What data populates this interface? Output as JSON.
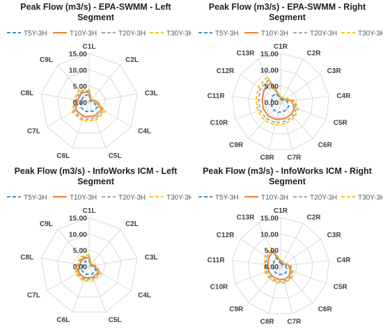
{
  "chart_data": [
    {
      "type": "radar",
      "title": "Peak Flow (m3/s) - EPA-SWMM - Left Segment",
      "title_lines": [
        "Peak Flow (m3/s) - EPA-SWMM - Left",
        "Segment"
      ],
      "categories": [
        "C1L",
        "C2L",
        "C3L",
        "C4L",
        "C5L",
        "C6L",
        "C7L",
        "C8L",
        "C9L"
      ],
      "rlim": [
        0,
        15
      ],
      "rticks": [
        "0.00",
        "5.00",
        "10.00",
        "15.00"
      ],
      "grid": true,
      "legend_position": "top",
      "series": [
        {
          "name": "T5Y-3H",
          "values": [
            2.5,
            0.5,
            1.3,
            3.0,
            3.0,
            3.0,
            3.0,
            2.5,
            2.5
          ]
        },
        {
          "name": "T10Y-3H",
          "values": [
            3.2,
            0.8,
            2.0,
            4.5,
            4.5,
            4.7,
            4.8,
            3.6,
            3.7
          ]
        },
        {
          "name": "T20Y-3H",
          "values": [
            3.5,
            1.0,
            2.3,
            5.2,
            5.3,
            5.6,
            5.5,
            4.1,
            4.3
          ]
        },
        {
          "name": "T30Y-3H",
          "values": [
            3.9,
            1.2,
            2.6,
            5.7,
            5.9,
            6.1,
            6.0,
            4.5,
            4.8
          ]
        }
      ]
    },
    {
      "type": "radar",
      "title": "Peak Flow (m3/s) - EPA-SWMM - Right Segment",
      "title_lines": [
        "Peak Flow (m3/s) - EPA-SWMM - Right",
        "Segment"
      ],
      "categories": [
        "C1R",
        "C2R",
        "C3R",
        "C4R",
        "C5R",
        "C6R",
        "C7R",
        "C8R",
        "C9R",
        "C10R",
        "C11R",
        "C12R",
        "C13R"
      ],
      "rlim": [
        0,
        15
      ],
      "rticks": [
        "0.00",
        "5.00",
        "10.00",
        "15.00"
      ],
      "grid": true,
      "legend_position": "top",
      "series": [
        {
          "name": "T5Y-3H",
          "values": [
            1.0,
            0.8,
            1.0,
            2.0,
            2.7,
            3.0,
            3.0,
            3.2,
            3.2,
            3.0,
            2.8,
            3.2,
            3.0
          ]
        },
        {
          "name": "T10Y-3H",
          "values": [
            1.3,
            1.2,
            1.6,
            3.4,
            4.5,
            5.0,
            5.2,
            5.5,
            5.7,
            5.7,
            5.7,
            6.3,
            6.7
          ]
        },
        {
          "name": "T20Y-3H",
          "values": [
            1.5,
            1.4,
            1.9,
            4.0,
            5.2,
            5.8,
            6.0,
            6.5,
            6.7,
            6.8,
            6.8,
            7.6,
            7.8
          ]
        },
        {
          "name": "T30Y-3H",
          "values": [
            1.7,
            1.6,
            2.1,
            4.4,
            5.7,
            6.4,
            6.7,
            7.2,
            7.5,
            7.5,
            7.6,
            8.3,
            8.8
          ]
        }
      ]
    },
    {
      "type": "radar",
      "title": "Peak Flow (m3/s) - InfoWorks ICM - Left Segment",
      "title_lines": [
        "Peak Flow (m3/s) - InfoWorks ICM - Left",
        "Segment"
      ],
      "categories": [
        "C1L",
        "C2L",
        "C3L",
        "C4L",
        "C5L",
        "C6L",
        "C7L",
        "C8L",
        "C9L"
      ],
      "rlim": [
        0,
        15
      ],
      "rticks": [
        "0.00",
        "5.00",
        "10.00",
        "15.00"
      ],
      "grid": true,
      "legend_position": "top",
      "series": [
        {
          "name": "T5Y-3H",
          "values": [
            2.0,
            0.5,
            1.0,
            2.5,
            2.5,
            2.6,
            2.6,
            2.0,
            2.0
          ]
        },
        {
          "name": "T10Y-3H",
          "values": [
            2.8,
            0.7,
            1.5,
            3.4,
            3.5,
            3.8,
            3.8,
            3.0,
            3.0
          ]
        },
        {
          "name": "T20Y-3H",
          "values": [
            3.2,
            0.9,
            1.8,
            3.9,
            4.0,
            4.3,
            4.3,
            3.5,
            3.5
          ]
        },
        {
          "name": "T30Y-3H",
          "values": [
            3.6,
            1.0,
            2.0,
            4.3,
            4.4,
            4.7,
            4.7,
            3.9,
            3.9
          ]
        }
      ]
    },
    {
      "type": "radar",
      "title": "Peak Flow (m3/s) - InfoWorks ICM - Right Segment",
      "title_lines": [
        "Peak Flow (m3/s) - InfoWorks ICM - Right",
        "Segment"
      ],
      "categories": [
        "C1R",
        "C2R",
        "C3R",
        "C4R",
        "C5R",
        "C6R",
        "C7R",
        "C8R",
        "C9R",
        "C10R",
        "C11R",
        "C12R",
        "C13R"
      ],
      "rlim": [
        0,
        15
      ],
      "rticks": [
        "0.00",
        "5.00",
        "10.00",
        "15.00"
      ],
      "grid": true,
      "legend_position": "top",
      "series": [
        {
          "name": "T5Y-3H",
          "values": [
            1.0,
            0.8,
            0.8,
            1.5,
            2.0,
            2.5,
            2.5,
            2.5,
            2.5,
            2.3,
            2.3,
            2.5,
            3.0
          ]
        },
        {
          "name": "T10Y-3H",
          "values": [
            1.5,
            1.2,
            1.3,
            2.5,
            3.2,
            4.0,
            4.2,
            4.0,
            4.0,
            4.0,
            4.0,
            4.5,
            5.2
          ]
        },
        {
          "name": "T20Y-3H",
          "values": [
            1.8,
            1.4,
            1.5,
            2.9,
            3.7,
            4.6,
            4.8,
            4.7,
            4.6,
            4.6,
            4.6,
            5.2,
            5.8
          ]
        },
        {
          "name": "T30Y-3H",
          "values": [
            2.0,
            1.6,
            1.7,
            3.2,
            4.1,
            5.0,
            5.3,
            5.2,
            5.1,
            5.1,
            5.1,
            5.8,
            6.5
          ]
        }
      ]
    }
  ],
  "series_styles": [
    {
      "color": "#3a8fd6",
      "dash": "dashed"
    },
    {
      "color": "#ed7d31",
      "dash": "solid"
    },
    {
      "color": "#a5a5a5",
      "dash": "dashed"
    },
    {
      "color": "#ffc000",
      "dash": "dashed"
    }
  ],
  "grid_color": "#d9d9d9"
}
